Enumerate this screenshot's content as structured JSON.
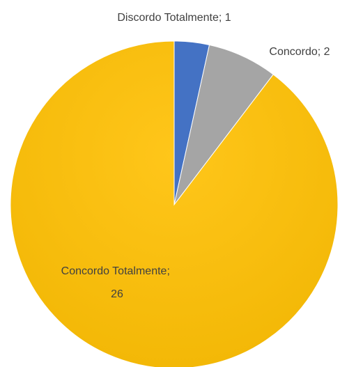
{
  "chart_data": {
    "type": "pie",
    "title": "",
    "slices": [
      {
        "label": "Discordo Totalmente; 1",
        "value": 1,
        "color": "#4472c4"
      },
      {
        "label": "Concordo; 2",
        "value": 2,
        "color": "#a5a5a5"
      },
      {
        "label_lines": [
          "Concordo Totalmente;",
          "26"
        ],
        "value": 26,
        "color": "#ffc000"
      }
    ],
    "legend": "none",
    "start_angle": "12 o'clock",
    "direction": "clockwise"
  }
}
